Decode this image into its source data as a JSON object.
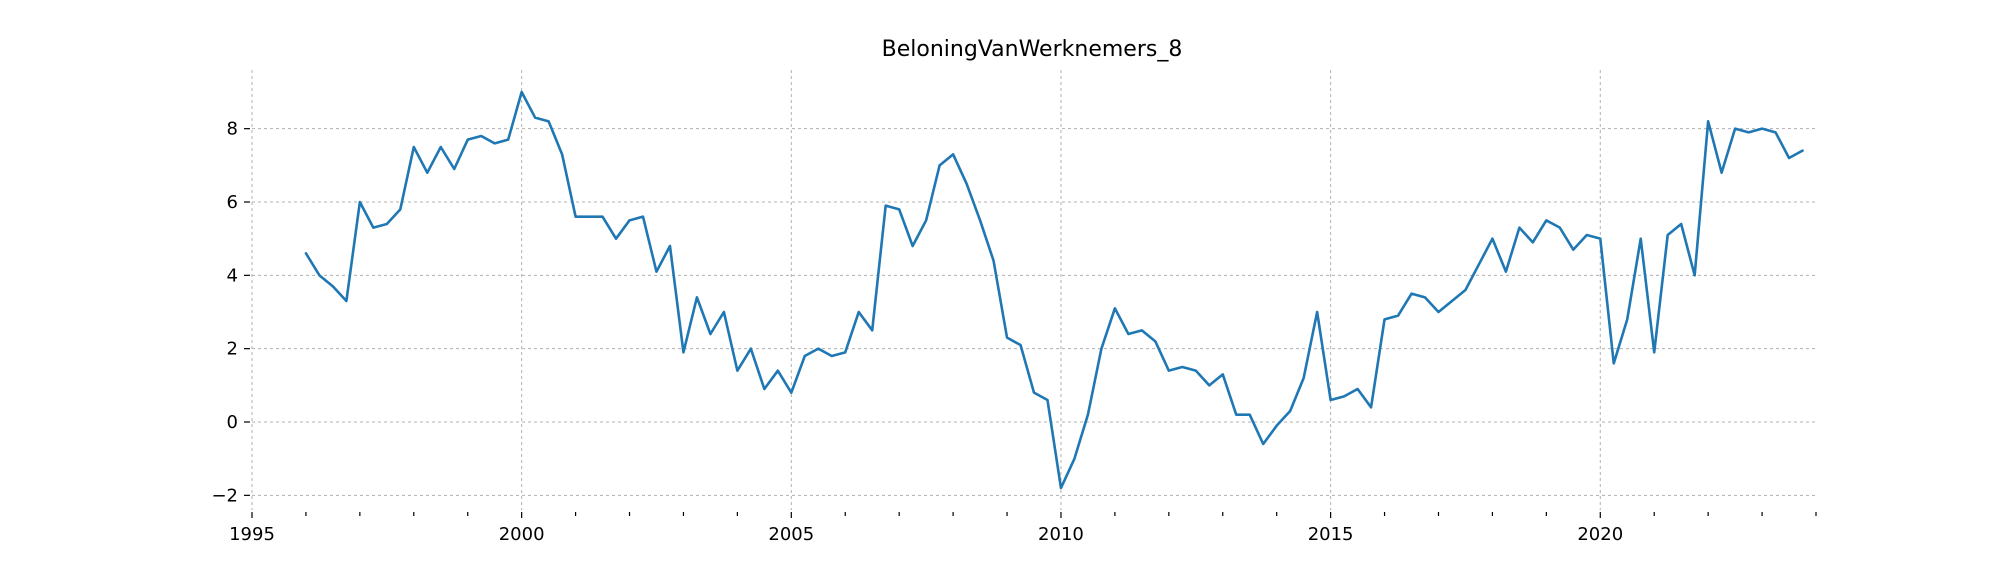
{
  "chart_data": {
    "type": "line",
    "title": "BeloningVanWerknemers_8",
    "xlabel": "",
    "ylabel": "",
    "xlim": [
      1995,
      2024
    ],
    "ylim": [
      -2.4,
      9.6
    ],
    "x_ticks": [
      1995,
      2000,
      2005,
      2010,
      2015,
      2020
    ],
    "y_ticks": [
      -2,
      0,
      2,
      4,
      6,
      8
    ],
    "x_tick_labels": [
      "1995",
      "2000",
      "2005",
      "2010",
      "2015",
      "2020"
    ],
    "y_tick_labels": [
      "−2",
      "0",
      "2",
      "4",
      "6",
      "8"
    ],
    "grid": true,
    "line_color": "#1f77b4",
    "series": [
      {
        "x": [
          1996.0,
          1996.25,
          1996.5,
          1996.75,
          1997.0,
          1997.25,
          1997.5,
          1997.75,
          1998.0,
          1998.25,
          1998.5,
          1998.75,
          1999.0,
          1999.25,
          1999.5,
          1999.75,
          2000.0,
          2000.25,
          2000.5,
          2000.75,
          2001.0,
          2001.25,
          2001.5,
          2001.75,
          2002.0,
          2002.25,
          2002.5,
          2002.75,
          2003.0,
          2003.25,
          2003.5,
          2003.75,
          2004.0,
          2004.25,
          2004.5,
          2004.75,
          2005.0,
          2005.25,
          2005.5,
          2005.75,
          2006.0,
          2006.25,
          2006.5,
          2006.75,
          2007.0,
          2007.25,
          2007.5,
          2007.75,
          2008.0,
          2008.25,
          2008.5,
          2008.75,
          2009.0,
          2009.25,
          2009.5,
          2009.75,
          2010.0,
          2010.25,
          2010.5,
          2010.75,
          2011.0,
          2011.25,
          2011.5,
          2011.75,
          2012.0,
          2012.25,
          2012.5,
          2012.75,
          2013.0,
          2013.25,
          2013.5,
          2013.75,
          2014.0,
          2014.25,
          2014.5,
          2014.75,
          2015.0,
          2015.25,
          2015.5,
          2015.75,
          2016.0,
          2016.25,
          2016.5,
          2016.75,
          2017.0,
          2017.25,
          2017.5,
          2017.75,
          2018.0,
          2018.25,
          2018.5,
          2018.75,
          2019.0,
          2019.25,
          2019.5,
          2019.75,
          2020.0,
          2020.25,
          2020.5,
          2020.75,
          2021.0,
          2021.25,
          2021.5,
          2021.75,
          2022.0,
          2022.25,
          2022.5,
          2022.75,
          2023.0,
          2023.25,
          2023.5,
          2023.75
        ],
        "values": [
          4.6,
          4.0,
          3.7,
          3.3,
          6.0,
          5.3,
          5.4,
          5.8,
          7.5,
          6.8,
          7.5,
          6.9,
          7.7,
          7.8,
          7.6,
          7.7,
          9.0,
          8.3,
          8.2,
          7.3,
          5.6,
          5.6,
          5.6,
          5.0,
          5.5,
          5.6,
          4.1,
          4.8,
          1.9,
          3.4,
          2.4,
          3.0,
          1.4,
          2.0,
          0.9,
          1.4,
          0.8,
          1.8,
          2.0,
          1.8,
          1.9,
          3.0,
          2.5,
          5.9,
          5.8,
          4.8,
          5.5,
          7.0,
          7.3,
          6.5,
          5.5,
          4.4,
          2.3,
          2.1,
          0.8,
          0.6,
          -1.8,
          -1.0,
          0.2,
          2.0,
          3.1,
          2.4,
          2.5,
          2.2,
          1.4,
          1.5,
          1.4,
          1.0,
          1.3,
          0.2,
          0.2,
          -0.6,
          -0.1,
          0.3,
          1.2,
          3.0,
          0.6,
          0.7,
          0.9,
          0.4,
          2.8,
          2.9,
          3.5,
          3.4,
          3.0,
          3.3,
          3.6,
          4.3,
          5.0,
          4.1,
          5.3,
          4.9,
          5.5,
          5.3,
          4.7,
          5.1,
          5.0,
          1.6,
          2.8,
          5.0,
          1.9,
          5.1,
          5.4,
          4.0,
          8.2,
          6.8,
          8.0,
          7.9,
          8.0,
          7.9,
          7.2,
          7.4
        ]
      }
    ]
  }
}
